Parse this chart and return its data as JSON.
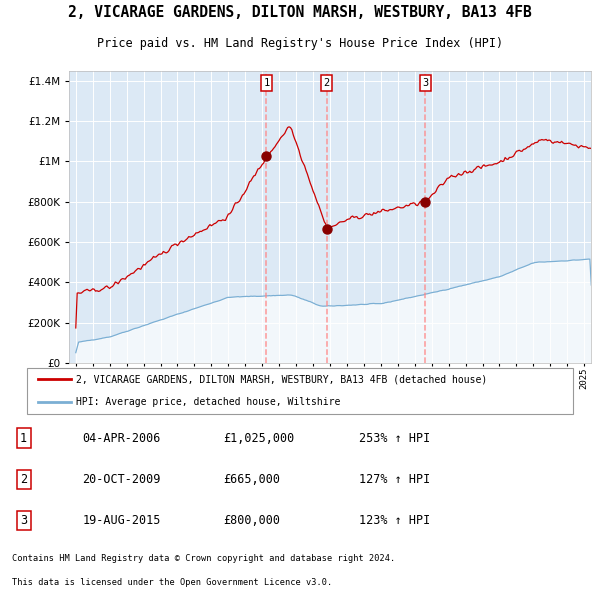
{
  "title": "2, VICARAGE GARDENS, DILTON MARSH, WESTBURY, BA13 4FB",
  "subtitle": "Price paid vs. HM Land Registry's House Price Index (HPI)",
  "legend_property": "2, VICARAGE GARDENS, DILTON MARSH, WESTBURY, BA13 4FB (detached house)",
  "legend_hpi": "HPI: Average price, detached house, Wiltshire",
  "sale1_date": "04-APR-2006",
  "sale1_price": 1025000,
  "sale1_hpi_pct": "253%",
  "sale2_date": "20-OCT-2009",
  "sale2_price": 665000,
  "sale2_hpi_pct": "127%",
  "sale3_date": "19-AUG-2015",
  "sale3_price": 800000,
  "sale3_hpi_pct": "123%",
  "footer1": "Contains HM Land Registry data © Crown copyright and database right 2024.",
  "footer2": "This data is licensed under the Open Government Licence v3.0.",
  "background_color": "#dce9f5",
  "line_color_property": "#cc0000",
  "line_color_hpi": "#7bafd4",
  "dashed_line_color": "#ff8888",
  "ylim": [
    0,
    1450000
  ],
  "yticks": [
    0,
    200000,
    400000,
    600000,
    800000,
    1000000,
    1200000,
    1400000
  ],
  "sale1_x": 2006.25,
  "sale2_x": 2009.8,
  "sale3_x": 2015.63,
  "xlim_left": 1994.6,
  "xlim_right": 2025.4
}
